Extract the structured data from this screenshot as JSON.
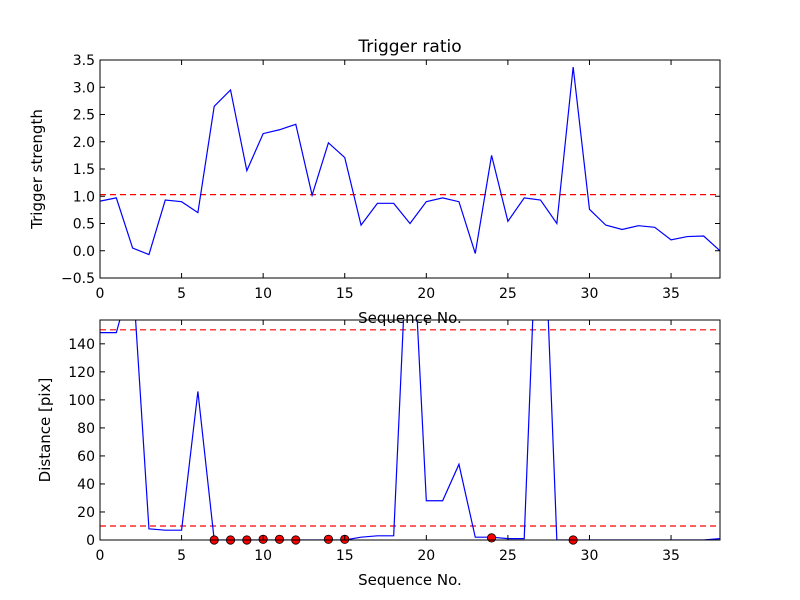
{
  "chart_data": [
    {
      "type": "line",
      "title": "Trigger ratio",
      "xlabel": "Sequence No.",
      "ylabel": "Trigger strength",
      "xlim": [
        0,
        38
      ],
      "ylim": [
        -0.5,
        3.5
      ],
      "xticks": [
        "0",
        "5",
        "10",
        "15",
        "20",
        "25",
        "30",
        "35"
      ],
      "yticks": [
        "−0.5",
        "0.0",
        "0.5",
        "1.0",
        "1.5",
        "2.0",
        "2.5",
        "3.0",
        "3.5"
      ],
      "grid": false,
      "series": [
        {
          "color": "#0000ff",
          "x": [
            0,
            1,
            2,
            3,
            4,
            5,
            6,
            7,
            8,
            9,
            10,
            11,
            12,
            13,
            14,
            15,
            16,
            17,
            18,
            19,
            20,
            21,
            22,
            23,
            24,
            25,
            26,
            27,
            28,
            29,
            30,
            31,
            32,
            33,
            34,
            35,
            36,
            37,
            38
          ],
          "y": [
            0.91,
            0.97,
            0.05,
            -0.07,
            0.93,
            0.9,
            0.7,
            2.65,
            2.95,
            1.47,
            2.15,
            2.22,
            2.32,
            1.02,
            1.98,
            1.71,
            0.47,
            0.87,
            0.87,
            0.5,
            0.9,
            0.97,
            0.9,
            -0.05,
            1.75,
            0.54,
            0.97,
            0.93,
            0.5,
            3.37,
            0.76,
            0.47,
            0.39,
            0.46,
            0.43,
            0.2,
            0.26,
            0.27,
            0.0
          ]
        }
      ],
      "threshold_lines": [
        {
          "y": 1.03,
          "color": "#ff0000",
          "style": "dashed"
        }
      ]
    },
    {
      "type": "line",
      "title": "",
      "xlabel": "Sequence No.",
      "ylabel": "Distance [pix]",
      "xlim": [
        0,
        38
      ],
      "ylim": [
        0,
        157
      ],
      "xticks": [
        "0",
        "5",
        "10",
        "15",
        "20",
        "25",
        "30",
        "35"
      ],
      "yticks": [
        "0",
        "20",
        "40",
        "60",
        "80",
        "100",
        "120",
        "140"
      ],
      "grid": false,
      "series": [
        {
          "color": "#0000ff",
          "x": [
            0,
            1,
            2,
            3,
            4,
            5,
            6,
            7,
            8,
            9,
            10,
            11,
            12,
            13,
            14,
            15,
            16,
            17,
            18,
            19,
            20,
            21,
            22,
            23,
            24,
            25,
            26,
            27,
            28,
            29,
            30,
            31,
            32,
            33,
            34,
            35,
            36,
            37,
            38
          ],
          "y": [
            148,
            148,
            190,
            8,
            7,
            7,
            106,
            0,
            0,
            0,
            0,
            0,
            0,
            0,
            0,
            0,
            2,
            3,
            3,
            260,
            28,
            28,
            54,
            2,
            2,
            1,
            1,
            300,
            0,
            0,
            0,
            0,
            0,
            0,
            0,
            0,
            0,
            0,
            1
          ]
        }
      ],
      "markers": {
        "color": "#ff0000",
        "x": [
          7,
          8,
          9,
          10,
          11,
          12,
          14,
          15,
          24,
          29
        ],
        "y": [
          0,
          0,
          0,
          0.5,
          0.5,
          0,
          0.5,
          0.5,
          1.5,
          0
        ]
      },
      "threshold_lines": [
        {
          "y": 150,
          "color": "#ff0000",
          "style": "dashed"
        },
        {
          "y": 10,
          "color": "#ff0000",
          "style": "dashed"
        }
      ]
    }
  ]
}
